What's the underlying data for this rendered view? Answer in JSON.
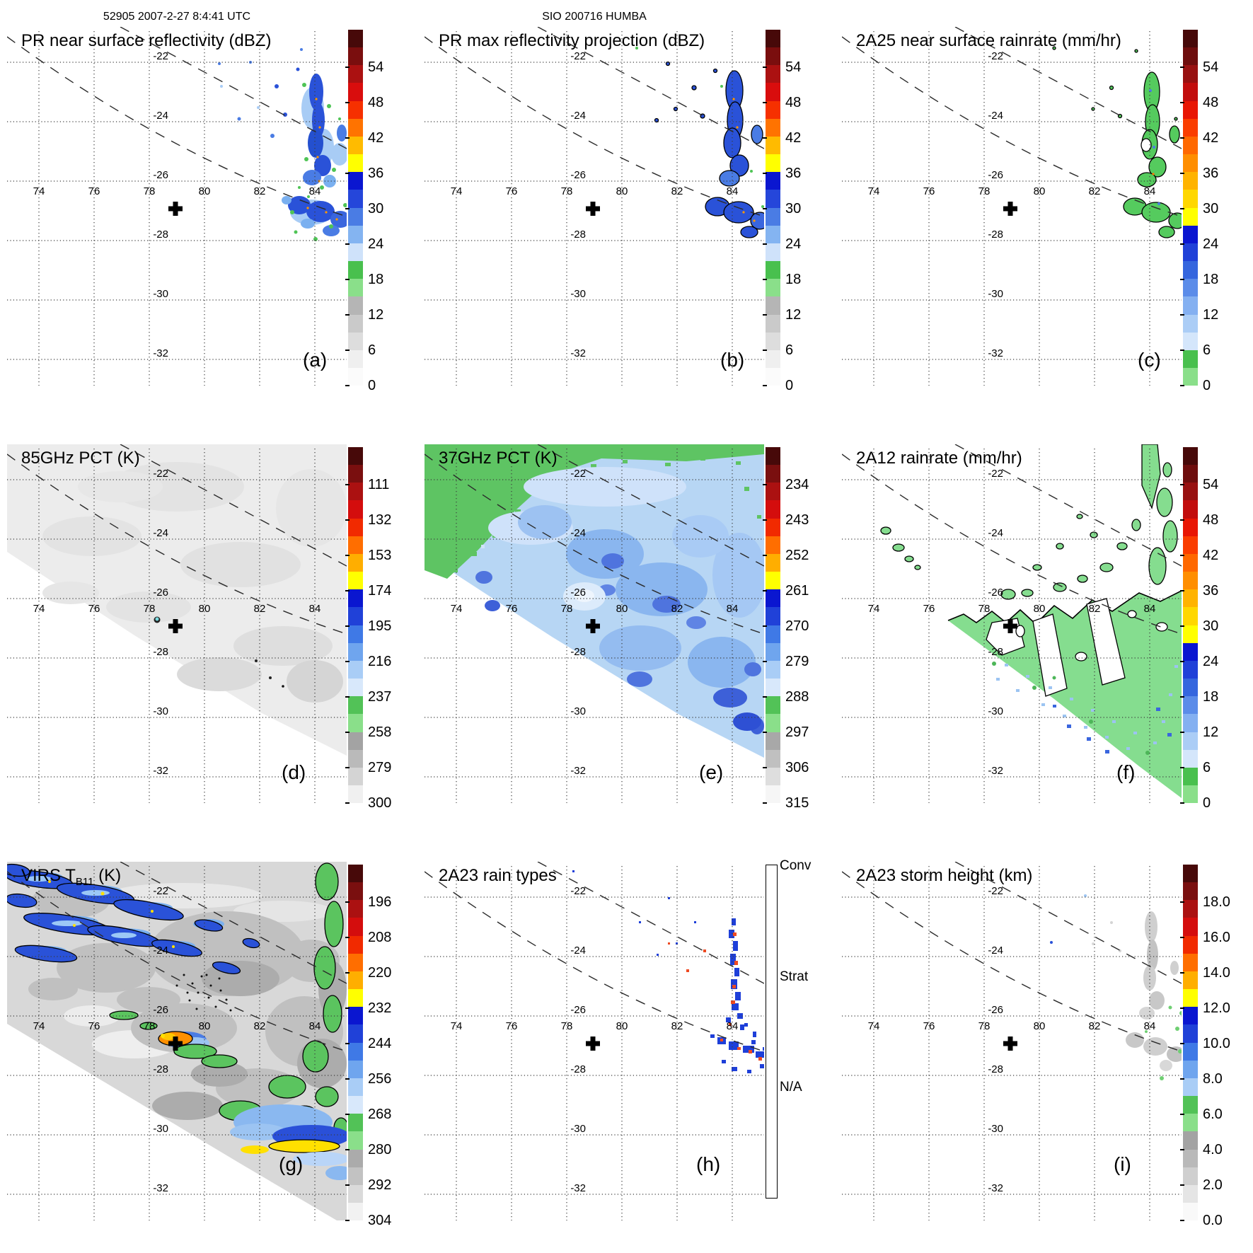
{
  "header": {
    "left": "52905 2007-2-27 8:4:41 UTC",
    "center": "SIO 200716 HUMBA"
  },
  "axes": {
    "lon_labels": [
      "74",
      "76",
      "78",
      "80",
      "82",
      "84"
    ],
    "lat_labels": [
      "-22",
      "-24",
      "-26",
      "-28",
      "-30",
      "-32"
    ]
  },
  "marker": {
    "name": "storm-center-cross",
    "lon": 79.0,
    "lat": -26.9
  },
  "palettes": {
    "dbz": [
      "#470909",
      "#7a0e0e",
      "#ab1111",
      "#d90d0d",
      "#f63000",
      "#ff7300",
      "#ffbb00",
      "#ffff00",
      "#0a16d0",
      "#2546da",
      "#4a7ce4",
      "#84b4f1",
      "#cfe2fa",
      "#49c04e",
      "#8adf8a",
      "#b5b5b5",
      "#cacaca",
      "#dddddd",
      "#efefef",
      "#fbfbfb"
    ],
    "rain": [
      "#470909",
      "#6e0d0d",
      "#981111",
      "#c20d0d",
      "#e81604",
      "#fa3d00",
      "#ff6800",
      "#ff8e00",
      "#ffb300",
      "#ffd700",
      "#ffff00",
      "#0a16d0",
      "#2041d8",
      "#3566de",
      "#5b8ce9",
      "#84b0f1",
      "#abcdf6",
      "#d4e6fb",
      "#49c04e",
      "#8adf8a"
    ],
    "pct85": [
      "#470909",
      "#7a0f0f",
      "#ab1111",
      "#d40d0d",
      "#f12a00",
      "#ff6e00",
      "#ffae00",
      "#ffff00",
      "#0a16d0",
      "#2041d8",
      "#3f79e6",
      "#6fa5ee",
      "#a9cdf6",
      "#d8e8fb",
      "#52c257",
      "#8adf8a",
      "#a3a3a3",
      "#bababa",
      "#d4d4d4",
      "#f0f0f0"
    ],
    "pct37": [
      "#470909",
      "#7a0f0f",
      "#ab1111",
      "#d40d0d",
      "#f12a00",
      "#ff6e00",
      "#ffae00",
      "#ffff00",
      "#0a16d0",
      "#2041d8",
      "#3f79e6",
      "#6fa5ee",
      "#a9cdf6",
      "#d8e8fb",
      "#52c257",
      "#8adf8a",
      "#a8a8a8",
      "#c0c0c0",
      "#dedede",
      "#f6f6f6"
    ],
    "virs": [
      "#470909",
      "#7a0f0f",
      "#ab1111",
      "#d40d0d",
      "#f12a00",
      "#ff6e00",
      "#ffae00",
      "#ffff00",
      "#0a16d0",
      "#2041d8",
      "#3f79e6",
      "#6fa5ee",
      "#a9cdf6",
      "#d8e8fb",
      "#52c257",
      "#8adf8a",
      "#ababab",
      "#c2c2c2",
      "#dadada",
      "#f2f2f2"
    ],
    "height": [
      "#470909",
      "#7a0f0f",
      "#ab1111",
      "#d40d0d",
      "#f12a00",
      "#ff6e00",
      "#ffae00",
      "#ffff00",
      "#0a16d0",
      "#2041d8",
      "#3f79e6",
      "#6fa5ee",
      "#a9cdf6",
      "#52c257",
      "#8adf8a",
      "#a3a3a3",
      "#b9b9b9",
      "#cfcfcf",
      "#e5e5e5",
      "#f9f9f9"
    ]
  },
  "raintype_colors": {
    "conv": "#e8481c",
    "strat": "#1531d9",
    "na": "#ffffff"
  },
  "panels": [
    {
      "id": "a",
      "letter": "(a)",
      "title": "PR near surface reflectivity (dBZ)",
      "cbar_type": "segments",
      "palette": "dbz",
      "cbar_labels": [
        "54",
        "48",
        "42",
        "36",
        "30",
        "24",
        "18",
        "12",
        "6",
        "0"
      ]
    },
    {
      "id": "b",
      "letter": "(b)",
      "title": "PR max reflectivity projection (dBZ)",
      "cbar_type": "segments",
      "palette": "dbz",
      "cbar_labels": [
        "54",
        "48",
        "42",
        "36",
        "30",
        "24",
        "18",
        "12",
        "6",
        "0"
      ]
    },
    {
      "id": "c",
      "letter": "(c)",
      "title": "2A25 near surface rainrate (mm/hr)",
      "cbar_type": "segments",
      "palette": "rain",
      "cbar_labels": [
        "54",
        "48",
        "42",
        "36",
        "30",
        "24",
        "18",
        "12",
        "6",
        "0"
      ]
    },
    {
      "id": "d",
      "letter": "(d)",
      "title": "85GHz PCT (K)",
      "cbar_type": "segments",
      "palette": "pct85",
      "cbar_labels": [
        "111",
        "132",
        "153",
        "174",
        "195",
        "216",
        "237",
        "258",
        "279",
        "300"
      ]
    },
    {
      "id": "e",
      "letter": "(e)",
      "title": "37GHz PCT (K)",
      "cbar_type": "segments",
      "palette": "pct37",
      "cbar_labels": [
        "234",
        "243",
        "252",
        "261",
        "270",
        "279",
        "288",
        "297",
        "306",
        "315"
      ]
    },
    {
      "id": "f",
      "letter": "(f)",
      "title": "2A12 rainrate (mm/hr)",
      "cbar_type": "segments",
      "palette": "rain",
      "cbar_labels": [
        "54",
        "48",
        "42",
        "36",
        "30",
        "24",
        "18",
        "12",
        "6",
        "0"
      ]
    },
    {
      "id": "g",
      "letter": "(g)",
      "title": "VIRS T",
      "title_sub": "B11",
      "title_tail": " (K)",
      "cbar_type": "segments",
      "palette": "virs",
      "cbar_labels": [
        "196",
        "208",
        "220",
        "232",
        "244",
        "256",
        "268",
        "280",
        "292",
        "304"
      ]
    },
    {
      "id": "h",
      "letter": "(h)",
      "title": "2A23 rain types",
      "cbar_type": "raintype",
      "cbar_labels": [
        "Conv",
        "Strat",
        "N/A"
      ]
    },
    {
      "id": "i",
      "letter": "(i)",
      "title": "2A23 storm height (km)",
      "cbar_type": "segments",
      "palette": "height",
      "cbar_labels": [
        "18.0",
        "16.0",
        "14.0",
        "12.0",
        "10.0",
        "8.0",
        "6.0",
        "4.0",
        "2.0",
        "0.0"
      ]
    }
  ],
  "chart_data": [
    {
      "panel": "(a)",
      "type": "heatmap",
      "title": "PR near surface reflectivity (dBZ)",
      "x_ticks": [
        74,
        76,
        78,
        80,
        82,
        84
      ],
      "y_ticks": [
        -22,
        -24,
        -26,
        -28,
        -30,
        -32
      ],
      "x_range": [
        72.6,
        86.1
      ],
      "y_range": [
        -33.0,
        -20.8
      ],
      "colorbar_ticks": [
        54,
        48,
        42,
        36,
        30,
        24,
        18,
        12,
        6,
        0
      ],
      "units": "dBZ",
      "legend_position": "right",
      "grid": "dotted",
      "summary": "Scattered convective cells (18-45 dBZ, blue with green fringe and orange cores) in a N-S band near 84E between 24.5S and 27.5S, inside two dashed PR swath-edge lines; storm center cross at 79E 26.9S"
    },
    {
      "panel": "(b)",
      "type": "heatmap",
      "title": "PR max reflectivity projection (dBZ)",
      "x_ticks": [
        74,
        76,
        78,
        80,
        82,
        84
      ],
      "y_ticks": [
        -22,
        -24,
        -26,
        -28,
        -30,
        -32
      ],
      "colorbar_ticks": [
        54,
        48,
        42,
        36,
        30,
        24,
        18,
        12,
        6,
        0
      ],
      "units": "dBZ",
      "summary": "Same rain band as (a) with black contour outlines around echo regions"
    },
    {
      "panel": "(c)",
      "type": "heatmap",
      "title": "2A25 near surface rainrate (mm/hr)",
      "x_ticks": [
        74,
        76,
        78,
        80,
        82,
        84
      ],
      "y_ticks": [
        -22,
        -24,
        -26,
        -28,
        -30,
        -32
      ],
      "colorbar_ticks": [
        54,
        48,
        42,
        36,
        30,
        24,
        18,
        12,
        6,
        0
      ],
      "units": "mm/hr",
      "summary": "Light rain (0-6 mm/hr, green, black-contoured) in the 84E band with a few blue 6-24 mm/hr pixels"
    },
    {
      "panel": "(d)",
      "type": "heatmap",
      "title": "85GHz PCT (K)",
      "x_ticks": [
        74,
        76,
        78,
        80,
        82,
        84
      ],
      "y_ticks": [
        -22,
        -24,
        -26,
        -28,
        -30,
        -32
      ],
      "colorbar_ticks": [
        111,
        132,
        153,
        174,
        195,
        216,
        237,
        258,
        279,
        300
      ],
      "units": "K",
      "summary": "TMI swath (upper-left diagonal region) nearly uniform warm PCT ~275-295 K (pale gray); no data lower-left of swath edge"
    },
    {
      "panel": "(e)",
      "type": "heatmap",
      "title": "37GHz PCT (K)",
      "x_ticks": [
        74,
        76,
        78,
        80,
        82,
        84
      ],
      "y_ticks": [
        -22,
        -24,
        -26,
        -28,
        -30,
        -32
      ],
      "colorbar_ticks": [
        234,
        243,
        252,
        261,
        270,
        279,
        288,
        297,
        306,
        315
      ],
      "units": "K",
      "summary": "Green (285-292 K) land/limb region in NW of swath, light-to-medium blue (268-282 K) ocean elsewhere with darker blue patches SE; pale ring at storm center cross"
    },
    {
      "panel": "(f)",
      "type": "heatmap",
      "title": "2A12 rainrate (mm/hr)",
      "x_ticks": [
        74,
        76,
        78,
        80,
        82,
        84
      ],
      "y_ticks": [
        -22,
        -24,
        -26,
        -28,
        -30,
        -32
      ],
      "colorbar_ticks": [
        54,
        48,
        42,
        36,
        30,
        24,
        18,
        12,
        6,
        0
      ],
      "units": "mm/hr",
      "summary": "Large black-contoured light-rain (0-6 mm/hr green) shield over SE half of swath with white no-rain gulfs, blue 6-24 mm/hr speckles, white bay and small ellipse at storm center"
    },
    {
      "panel": "(g)",
      "type": "heatmap",
      "title": "VIRS TB11 (K)",
      "x_ticks": [
        74,
        76,
        78,
        80,
        82,
        84
      ],
      "y_ticks": [
        -22,
        -24,
        -26,
        -28,
        -30,
        -32
      ],
      "colorbar_ticks": [
        196,
        208,
        220,
        232,
        244,
        256,
        268,
        280,
        292,
        304
      ],
      "units": "K",
      "summary": "Gray warm cloud field with black-contoured cold blue bands (232-256 K) across NW, green 262-274 K patches along east edge, orange/yellow cold spot (208-220 K) south of storm center, yellow-blue cold band at SE corner"
    },
    {
      "panel": "(h)",
      "type": "heatmap",
      "title": "2A23 rain types",
      "x_ticks": [
        74,
        76,
        78,
        80,
        82,
        84
      ],
      "y_ticks": [
        -22,
        -24,
        -26,
        -28,
        -30,
        -32
      ],
      "colorbar_ticks": [
        "Conv",
        "Strat",
        "N/A"
      ],
      "summary": "Stratiform (blue) speckles with embedded convective (orange-red) pixels in the 84E band between 24S and 27.5S"
    },
    {
      "panel": "(i)",
      "type": "heatmap",
      "title": "2A23 storm height (km)",
      "x_ticks": [
        74,
        76,
        78,
        80,
        82,
        84
      ],
      "y_ticks": [
        -22,
        -24,
        -26,
        -28,
        -30,
        -32
      ],
      "colorbar_ticks": [
        18.0,
        16.0,
        14.0,
        12.0,
        10.0,
        8.0,
        6.0,
        4.0,
        2.0,
        0.0
      ],
      "units": "km",
      "summary": "Storm heights mostly 1-5 km (gray) with a few 5-7 km (green) pixels in the 84E band"
    }
  ]
}
